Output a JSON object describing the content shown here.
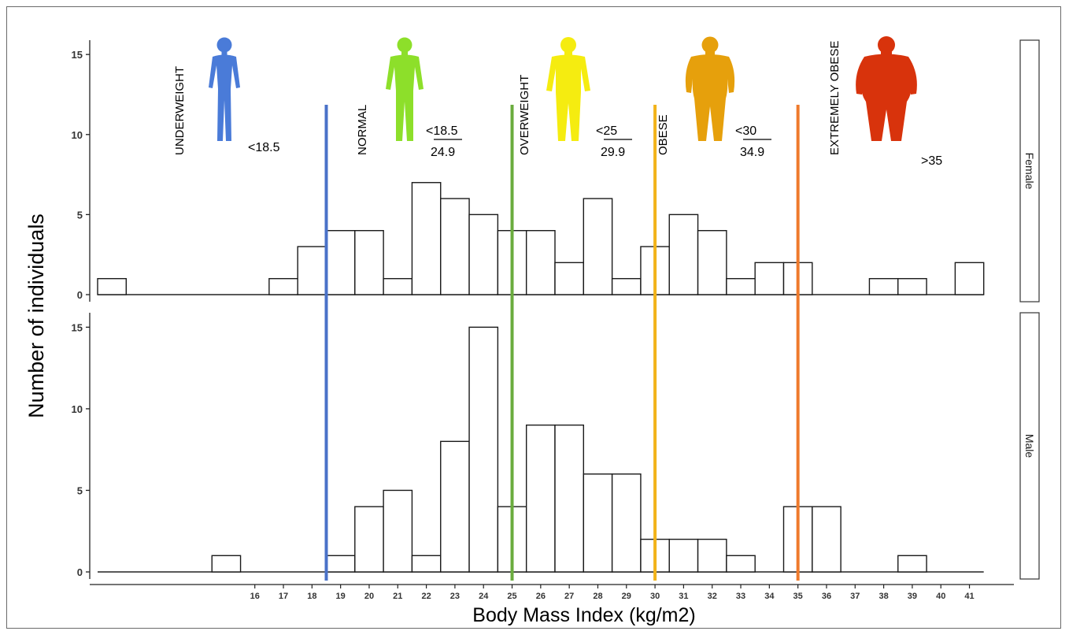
{
  "chart_data": {
    "type": "bar",
    "xlabel": "Body Mass Index (kg/m2)",
    "ylabel": "Number of individuals",
    "x_ticks": [
      16,
      17,
      18,
      19,
      20,
      21,
      22,
      23,
      24,
      25,
      26,
      27,
      28,
      29,
      30,
      31,
      32,
      33,
      34,
      35,
      36,
      37,
      38,
      39,
      40,
      41
    ],
    "bin_centers": [
      11,
      12,
      13,
      14,
      15,
      16,
      17,
      18,
      19,
      20,
      21,
      22,
      23,
      24,
      25,
      26,
      27,
      28,
      29,
      30,
      31,
      32,
      33,
      34,
      35,
      36,
      37,
      38,
      39,
      40,
      41,
      42
    ],
    "xlim": [
      10.5,
      42.5
    ],
    "ylim": [
      0,
      15.5
    ],
    "y_ticks": [
      0,
      5,
      10,
      15
    ],
    "panels": [
      {
        "name": "Female",
        "values": [
          1,
          0,
          0,
          0,
          0,
          0,
          1,
          3,
          4,
          4,
          1,
          7,
          6,
          5,
          4,
          4,
          2,
          6,
          1,
          3,
          5,
          4,
          1,
          2,
          2,
          0,
          0,
          1,
          1,
          0,
          2,
          0
        ]
      },
      {
        "name": "Male",
        "values": [
          0,
          0,
          0,
          0,
          1,
          0,
          0,
          0,
          1,
          4,
          5,
          1,
          8,
          15,
          4,
          9,
          9,
          6,
          6,
          2,
          2,
          2,
          1,
          0,
          4,
          4,
          0,
          0,
          1,
          0,
          0,
          0
        ]
      }
    ],
    "thresholds": [
      {
        "x": 18.5,
        "color": "#4a72c8"
      },
      {
        "x": 25,
        "color": "#6aac3e"
      },
      {
        "x": 30,
        "color": "#f2b31a"
      },
      {
        "x": 35,
        "color": "#ef7a2c"
      }
    ],
    "categories": [
      {
        "label": "UNDERWEIGHT",
        "range_top": "<18.5",
        "range_bottom": "",
        "color": "#4a7bd8",
        "icon": "slim-person-icon"
      },
      {
        "label": "NORMAL",
        "range_top": "<18.5",
        "range_bottom": "24.9",
        "color": "#8ddf2a",
        "icon": "normal-person-icon"
      },
      {
        "label": "OVERWEIGHT",
        "range_top": "<25",
        "range_bottom": "29.9",
        "color": "#f5ec10",
        "icon": "overweight-person-icon"
      },
      {
        "label": "OBESE",
        "range_top": "<30",
        "range_bottom": "34.9",
        "color": "#e6a00c",
        "icon": "obese-person-icon"
      },
      {
        "label": "EXTREMELY OBESE",
        "range_top": ">35",
        "range_bottom": "",
        "color": "#d8330c",
        "icon": "extremely-obese-person-icon"
      }
    ]
  }
}
